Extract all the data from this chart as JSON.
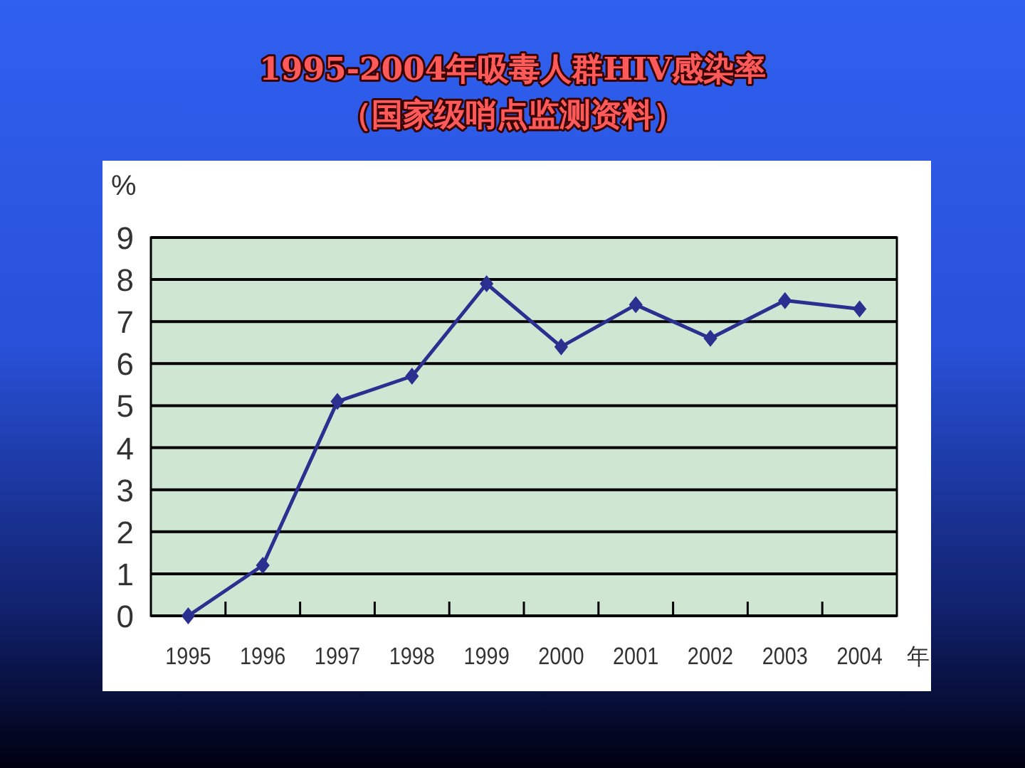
{
  "chart_data": {
    "type": "line",
    "title": "1995-2004年吸毒人群HIV感染率",
    "subtitle": "（国家级哨点监测资料）",
    "xlabel": "年",
    "ylabel": "%",
    "categories": [
      "1995",
      "1996",
      "1997",
      "1998",
      "1999",
      "2000",
      "2001",
      "2002",
      "2003",
      "2004"
    ],
    "series": [
      {
        "color": "#2b2f8f",
        "values": [
          0.0,
          1.2,
          5.1,
          5.7,
          7.9,
          6.4,
          7.4,
          6.6,
          7.5,
          7.3
        ]
      }
    ],
    "ylim": [
      0,
      9
    ],
    "yticks": [
      0,
      1,
      2,
      3,
      4,
      5,
      6,
      7,
      8,
      9
    ],
    "grid": "y",
    "marker": "diamond",
    "line_style": "solid"
  }
}
